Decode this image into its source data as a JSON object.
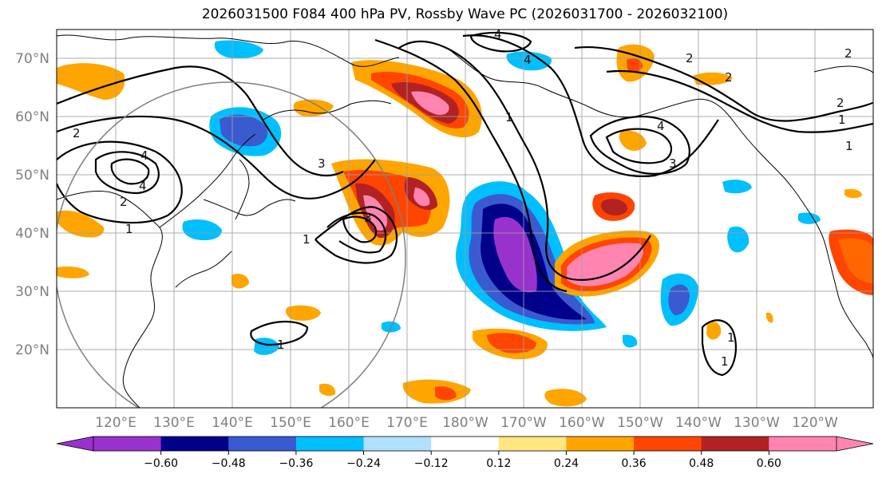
{
  "title": "2026031500 F084 400 hPa PV, Rossby Wave PC (2026031700 - 2026032100)",
  "lat_labels": [
    "70°N",
    "60°N",
    "50°N",
    "40°N",
    "30°N",
    "20°N"
  ],
  "lon_labels": [
    "120°E",
    "130°E",
    "140°E",
    "150°E",
    "160°E",
    "170°E",
    "180°W",
    "170°W",
    "160°W",
    "150°W",
    "140°W",
    "130°W",
    "120°W"
  ],
  "contour_labels": [
    "4",
    "4",
    "4",
    "2",
    "2",
    "2",
    "2",
    "1",
    "1",
    "3",
    "4",
    "2",
    "3",
    "4",
    "1",
    "2",
    "3",
    "1",
    "1",
    "1",
    "1",
    "1"
  ],
  "colorbar": {
    "colors": [
      "#9932cc",
      "#00008b",
      "#3a5bd0",
      "#00bfff",
      "#b0e0ff",
      "#ffffff",
      "#ffe680",
      "#ffa500",
      "#ff4500",
      "#b22222",
      "#ff85b0"
    ],
    "tick_labels": [
      "−0.60",
      "−0.48",
      "−0.36",
      "−0.24",
      "−0.12",
      "0.12",
      "0.24",
      "0.36",
      "0.48",
      "0.60"
    ]
  }
}
